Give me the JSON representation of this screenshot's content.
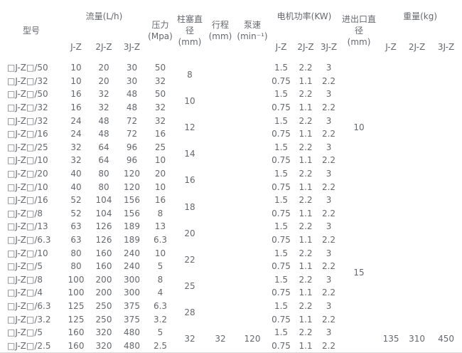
{
  "page": {
    "background": "#ffffff",
    "text_color": "#65686d",
    "border_color": "#d9d9d9"
  },
  "table": {
    "headers": {
      "model": "型号",
      "flow_group": "流量(L/h)",
      "pressure": "压力\n(Mpa)",
      "plunger": "柱塞直径\n(mm)",
      "stroke": "行程\n(mm)",
      "speed": "泵速\n(min⁻¹)",
      "power_group": "电机功率(KW)",
      "diameter": "进出口直\n径\n(mm)",
      "weight_group": "重量(kg)",
      "sub": [
        "J-Z",
        "2J-Z",
        "3J-Z"
      ]
    },
    "rows": [
      {
        "model": "□J-Z□/50",
        "flow": [
          "10",
          "20",
          "30"
        ],
        "pressure": "50",
        "power": [
          "1.5",
          "2.2",
          "3"
        ]
      },
      {
        "model": "□J-Z□/32",
        "flow": [
          "10",
          "20",
          "30"
        ],
        "pressure": "32",
        "power": [
          "0.75",
          "1.1",
          "2.2"
        ]
      },
      {
        "model": "□J-Z□/50",
        "flow": [
          "16",
          "32",
          "48"
        ],
        "pressure": "50",
        "power": [
          "1.5",
          "2.2",
          "3"
        ]
      },
      {
        "model": "□J-Z□/32",
        "flow": [
          "16",
          "32",
          "48"
        ],
        "pressure": "32",
        "power": [
          "0.75",
          "1.1",
          "2.2"
        ]
      },
      {
        "model": "□J-Z□/32",
        "flow": [
          "24",
          "48",
          "72"
        ],
        "pressure": "32",
        "power": [
          "1.5",
          "2.2",
          "3"
        ]
      },
      {
        "model": "□J-Z□/16",
        "flow": [
          "24",
          "48",
          "72"
        ],
        "pressure": "16",
        "power": [
          "0.75",
          "1.1",
          "2.2"
        ]
      },
      {
        "model": "□J-Z□/25",
        "flow": [
          "32",
          "64",
          "96"
        ],
        "pressure": "25",
        "power": [
          "1.5",
          "2.2",
          "3"
        ]
      },
      {
        "model": "□J-Z□/10",
        "flow": [
          "32",
          "64",
          "96"
        ],
        "pressure": "10",
        "power": [
          "0.75",
          "1.1",
          "2.2"
        ]
      },
      {
        "model": "□J-Z□/20",
        "flow": [
          "40",
          "80",
          "120"
        ],
        "pressure": "20",
        "power": [
          "1.5",
          "2.2",
          "3"
        ]
      },
      {
        "model": "□J-Z□/10",
        "flow": [
          "40",
          "80",
          "120"
        ],
        "pressure": "10",
        "power": [
          "0.75",
          "1.1",
          "2.2"
        ]
      },
      {
        "model": "□J-Z□/16",
        "flow": [
          "52",
          "104",
          "156"
        ],
        "pressure": "16",
        "power": [
          "1.5",
          "2.2",
          "3"
        ]
      },
      {
        "model": "□J-Z□/8",
        "flow": [
          "52",
          "104",
          "156"
        ],
        "pressure": "8",
        "power": [
          "0.75",
          "1.1",
          "2.2"
        ]
      },
      {
        "model": "□J-Z□/13",
        "flow": [
          "63",
          "126",
          "189"
        ],
        "pressure": "13",
        "power": [
          "1.5",
          "2.2",
          "3"
        ]
      },
      {
        "model": "□J-Z□/6.3",
        "flow": [
          "63",
          "126",
          "189"
        ],
        "pressure": "6.3",
        "power": [
          "0.75",
          "1.1",
          "2.2"
        ]
      },
      {
        "model": "□J-Z□/10",
        "flow": [
          "80",
          "160",
          "240"
        ],
        "pressure": "10",
        "power": [
          "1.5",
          "2.2",
          "3"
        ]
      },
      {
        "model": "□J-Z□/5",
        "flow": [
          "80",
          "160",
          "240"
        ],
        "pressure": "5",
        "power": [
          "0.75",
          "1.1",
          "2.2"
        ]
      },
      {
        "model": "□J-Z□/8",
        "flow": [
          "100",
          "200",
          "300"
        ],
        "pressure": "8",
        "power": [
          "1.5",
          "2.2",
          "3"
        ]
      },
      {
        "model": "□J-Z□/4",
        "flow": [
          "100",
          "200",
          "300"
        ],
        "pressure": "4",
        "power": [
          "0.75",
          "1.1",
          "2.2"
        ]
      },
      {
        "model": "□J-Z□/6.3",
        "flow": [
          "125",
          "250",
          "375"
        ],
        "pressure": "6.3",
        "power": [
          "1.5",
          "2.2",
          "3"
        ]
      },
      {
        "model": "□J-Z□/3.2",
        "flow": [
          "125",
          "250",
          "375"
        ],
        "pressure": "3.2",
        "power": [
          "0.75",
          "1.1",
          "2.2"
        ]
      },
      {
        "model": "□J-Z□/5",
        "flow": [
          "160",
          "320",
          "480"
        ],
        "pressure": "5",
        "power": [
          "1.5",
          "2.2",
          "3"
        ]
      },
      {
        "model": "□J-Z□/2.5",
        "flow": [
          "160",
          "320",
          "480"
        ],
        "pressure": "2.5",
        "power": [
          "0.75",
          "1.1",
          "2.2"
        ]
      }
    ],
    "plunger_diameters": [
      "8",
      "10",
      "12",
      "14",
      "16",
      "18",
      "20",
      "22",
      "25",
      "28",
      "32"
    ],
    "stroke_value": "32",
    "speed_value": "120",
    "inlet_outlet": [
      {
        "value": "10",
        "rowspan": 10
      },
      {
        "value": "15",
        "rowspan": 12
      }
    ],
    "weights": [
      "135",
      "310",
      "450"
    ]
  }
}
